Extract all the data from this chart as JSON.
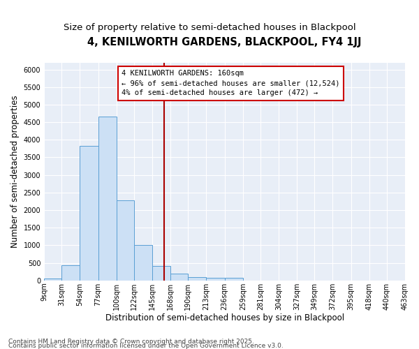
{
  "title": "4, KENILWORTH GARDENS, BLACKPOOL, FY4 1JJ",
  "subtitle": "Size of property relative to semi-detached houses in Blackpool",
  "xlabel": "Distribution of semi-detached houses by size in Blackpool",
  "ylabel": "Number of semi-detached properties",
  "footnote1": "Contains HM Land Registry data © Crown copyright and database right 2025.",
  "footnote2": "Contains public sector information licensed under the Open Government Licence v3.0.",
  "bar_edges": [
    9,
    31,
    54,
    77,
    100,
    122,
    145,
    168,
    190,
    213,
    236,
    259,
    281,
    304,
    327,
    349,
    372,
    395,
    418,
    440,
    463
  ],
  "bar_heights": [
    50,
    430,
    3820,
    4660,
    2280,
    1000,
    410,
    200,
    105,
    80,
    70,
    0,
    0,
    0,
    0,
    0,
    0,
    0,
    0,
    0
  ],
  "bar_color": "#cce0f5",
  "bar_edge_color": "#5a9fd4",
  "vline_x": 160,
  "vline_color": "#aa0000",
  "annotation_line1": "4 KENILWORTH GARDENS: 160sqm",
  "annotation_line2": "← 96% of semi-detached houses are smaller (12,524)",
  "annotation_line3": "4% of semi-detached houses are larger (472) →",
  "annotation_box_edgecolor": "#cc0000",
  "annotation_box_facecolor": "white",
  "ylim_max": 6200,
  "yticks": [
    0,
    500,
    1000,
    1500,
    2000,
    2500,
    3000,
    3500,
    4000,
    4500,
    5000,
    5500,
    6000
  ],
  "bg_color": "#e8eef7",
  "grid_color": "white",
  "title_fontsize": 10.5,
  "subtitle_fontsize": 9.5,
  "xlabel_fontsize": 8.5,
  "ylabel_fontsize": 8.5,
  "tick_fontsize": 7,
  "annotation_fontsize": 7.5,
  "footnote_fontsize": 6.5
}
